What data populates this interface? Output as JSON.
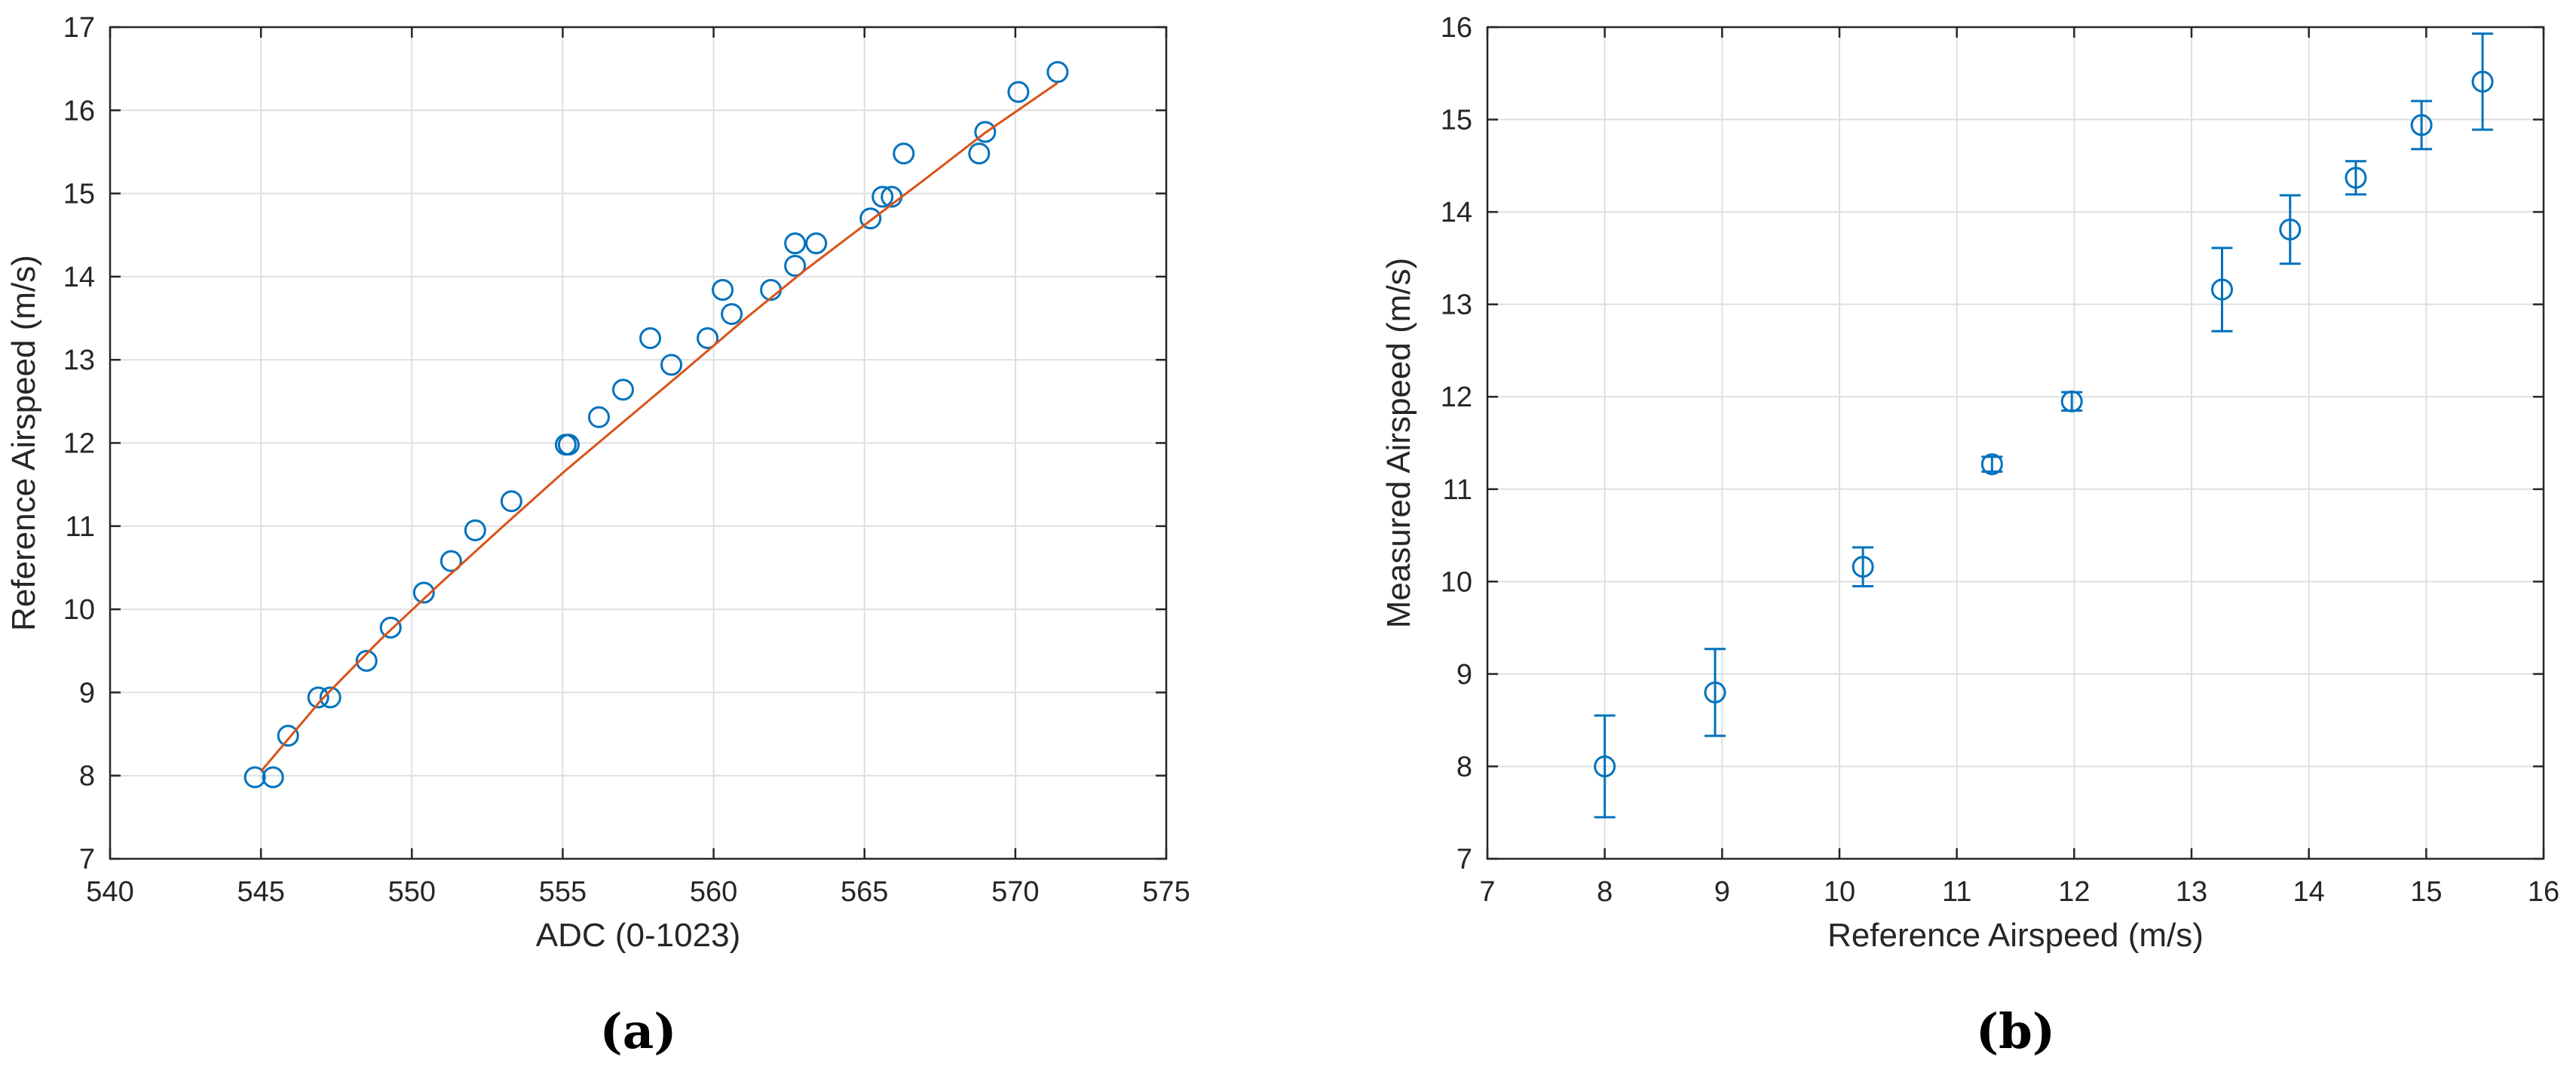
{
  "chart_data": [
    {
      "type": "scatter",
      "panel_label": "(a)",
      "title": "",
      "xlabel": "ADC (0-1023)",
      "ylabel": "Reference Airspeed (m/s)",
      "xlim": [
        540,
        575
      ],
      "ylim": [
        7,
        17
      ],
      "xticks": [
        540,
        545,
        550,
        555,
        560,
        565,
        570,
        575
      ],
      "yticks": [
        7,
        8,
        9,
        10,
        11,
        12,
        13,
        14,
        15,
        16,
        17
      ],
      "grid": true,
      "marker_color": "#0072BD",
      "fit_color": "#D95319",
      "series": [
        {
          "kind": "scatter",
          "x": [
            544.8,
            545.4,
            545.9,
            546.9,
            547.3,
            548.5,
            549.3,
            550.4,
            551.3,
            552.1,
            553.3,
            555.1,
            555.2,
            556.2,
            557.0,
            557.9,
            558.6,
            559.8,
            560.3,
            560.6,
            561.9,
            562.7,
            562.7,
            563.4,
            565.2,
            565.6,
            565.9,
            566.3,
            568.8,
            569.0,
            570.1,
            571.4
          ],
          "y": [
            7.98,
            7.98,
            8.48,
            8.94,
            8.94,
            9.38,
            9.78,
            10.2,
            10.58,
            10.95,
            11.3,
            11.98,
            11.98,
            12.31,
            12.64,
            13.26,
            12.94,
            13.26,
            13.84,
            13.55,
            13.84,
            14.13,
            14.4,
            14.4,
            14.7,
            14.96,
            14.96,
            15.48,
            15.48,
            15.74,
            16.22,
            16.46
          ]
        },
        {
          "kind": "line",
          "x": [
            545,
            547,
            549,
            551,
            553,
            555,
            557,
            559,
            561,
            563,
            565,
            567,
            569,
            571.4
          ],
          "y": [
            8.05,
            8.91,
            9.65,
            10.33,
            10.99,
            11.64,
            12.25,
            12.86,
            13.48,
            14.07,
            14.62,
            15.17,
            15.73,
            16.33
          ]
        }
      ]
    },
    {
      "type": "scatter",
      "panel_label": "(b)",
      "title": "",
      "xlabel": "Reference Airspeed (m/s)",
      "ylabel": "Measured Airspeed (m/s)",
      "xlim": [
        7,
        16
      ],
      "ylim": [
        7,
        16
      ],
      "xticks": [
        7,
        8,
        9,
        10,
        11,
        12,
        13,
        14,
        15,
        16
      ],
      "yticks": [
        7,
        8,
        9,
        10,
        11,
        12,
        13,
        14,
        15,
        16
      ],
      "grid": true,
      "marker_color": "#0072BD",
      "series": [
        {
          "kind": "errorbar",
          "x": [
            8.0,
            8.94,
            10.2,
            11.3,
            11.98,
            13.26,
            13.84,
            14.4,
            14.96,
            15.48
          ],
          "y": [
            8.0,
            8.8,
            10.16,
            11.27,
            11.95,
            13.16,
            13.81,
            14.37,
            14.94,
            15.41
          ],
          "yerr": [
            0.55,
            0.47,
            0.21,
            0.08,
            0.1,
            0.45,
            0.37,
            0.18,
            0.26,
            0.52
          ]
        }
      ]
    }
  ]
}
